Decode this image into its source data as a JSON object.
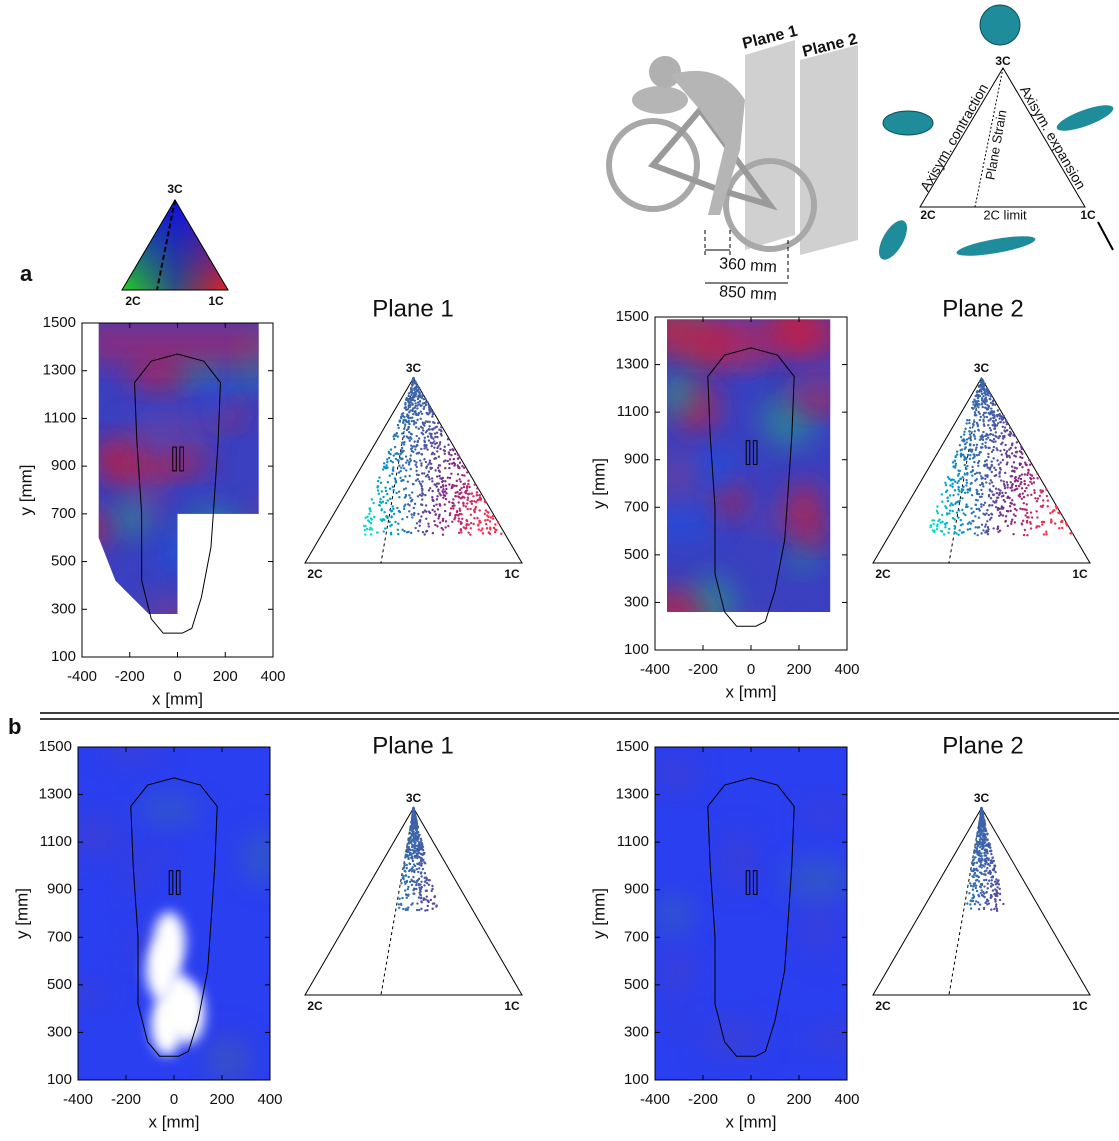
{
  "panel_labels": [
    "a",
    "b"
  ],
  "vertex_labels": {
    "top": "3C",
    "left": "2C",
    "right": "1C"
  },
  "plot_titles": [
    "Plane 1",
    "Plane 2"
  ],
  "schematic": {
    "distances": [
      "360 mm",
      "850 mm"
    ]
  },
  "anisotropy_map": {
    "left_edge": "Axisym. contraction",
    "right_edge": "Axisym. expansion",
    "center": "Plane Strain",
    "bottom_edge": "2C limit"
  },
  "axes": {
    "xlabel": "x [mm]",
    "ylabel": "y [mm]",
    "xlim": [
      -400,
      400
    ],
    "ylim": [
      100,
      1500
    ],
    "xticks": [
      -400,
      -200,
      0,
      200,
      400
    ],
    "yticks": [
      100,
      300,
      500,
      700,
      900,
      1100,
      1300,
      1500
    ]
  }
}
